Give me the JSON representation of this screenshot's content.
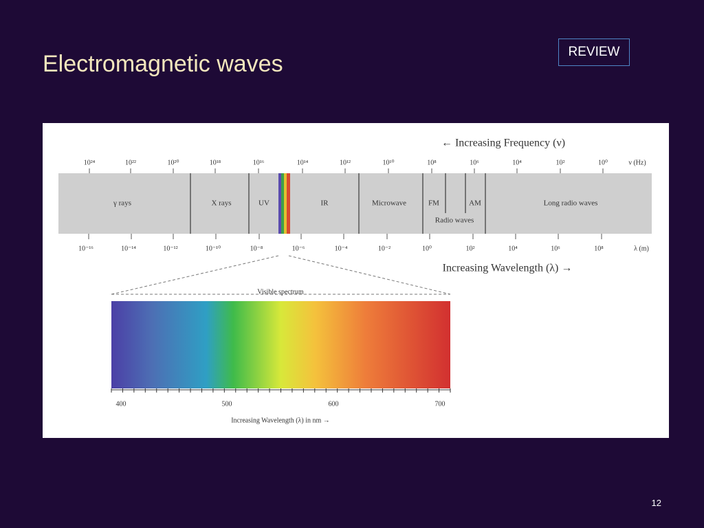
{
  "slide": {
    "title": "Electromagnetic waves",
    "badge": "REVIEW",
    "page_number": "12"
  },
  "diagram": {
    "frequency_caption": "← Increasing Frequency (ν)",
    "frequency_labels": [
      "10²⁴",
      "10²²",
      "10²⁰",
      "10¹⁸",
      "10¹⁶",
      "10¹⁴",
      "10¹²",
      "10¹⁰",
      "10⁸",
      "10⁶",
      "10⁴",
      "10²",
      "10⁰",
      "ν (Hz)"
    ],
    "bands": [
      "γ rays",
      "X rays",
      "UV",
      "IR",
      "Microwave",
      "FM",
      "AM",
      "Long radio waves"
    ],
    "radio_label": "Radio waves",
    "wavelength_labels": [
      "10⁻¹⁶",
      "10⁻¹⁴",
      "10⁻¹²",
      "10⁻¹⁰",
      "10⁻⁸",
      "10⁻⁶",
      "10⁻⁴",
      "10⁻²",
      "10⁰",
      "10²",
      "10⁴",
      "10⁶",
      "10⁸",
      "λ (m)"
    ],
    "wavelength_caption": "Increasing Wavelength (λ) →",
    "visible_title": "Visible spectrum",
    "visible_ticks": [
      400,
      500,
      600,
      700
    ],
    "visible_caption": "Increasing Wavelength (λ) in nm →"
  }
}
